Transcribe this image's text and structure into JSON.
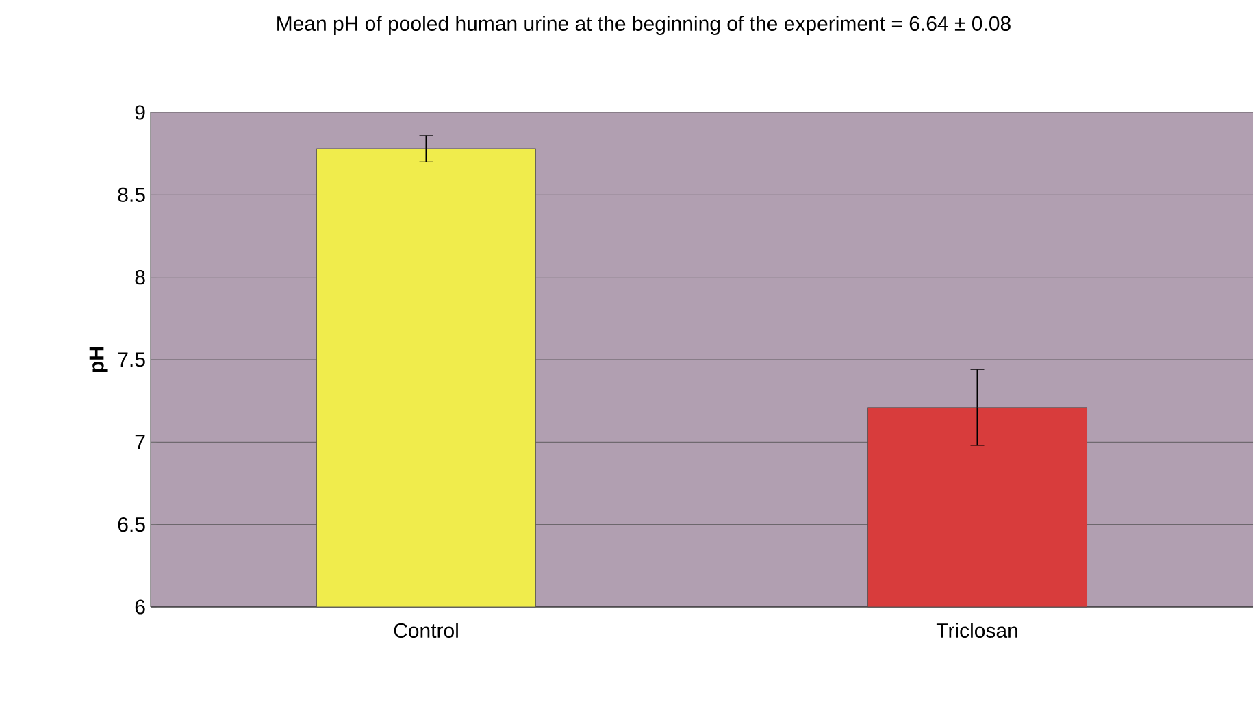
{
  "chart_data": {
    "type": "bar",
    "title": "Mean pH of pooled human urine at the beginning of the experiment = 6.64 ± 0.08",
    "ylabel": "pH",
    "categories": [
      "Control",
      "Triclosan"
    ],
    "values": [
      8.78,
      7.21
    ],
    "colors": [
      "#f0ec4c",
      "#d83c3c"
    ],
    "errors": [
      0.08,
      0.23
    ],
    "ylim": [
      6,
      9
    ],
    "yticks": [
      6,
      6.5,
      7,
      7.5,
      8,
      8.5,
      9
    ],
    "grid": "y"
  }
}
